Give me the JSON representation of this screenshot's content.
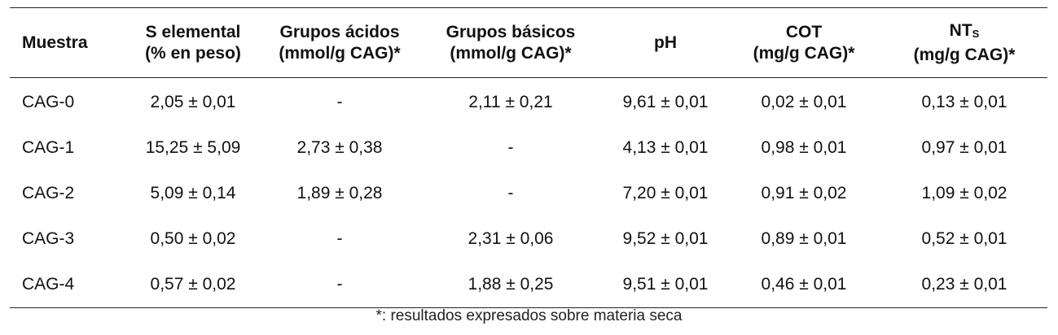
{
  "table": {
    "headers": [
      {
        "line1": "Muestra",
        "line2": ""
      },
      {
        "line1": "S elemental",
        "line2": "(% en peso)"
      },
      {
        "line1": "Grupos ácidos",
        "line2": "(mmol/g CAG)*"
      },
      {
        "line1": "Grupos básicos",
        "line2": "(mmol/g CAG)*"
      },
      {
        "line1": "pH",
        "line2": ""
      },
      {
        "line1": "COT",
        "line2": "(mg/g CAG)*"
      },
      {
        "line1": "NT",
        "sub": "S",
        "line2": "(mg/g CAG)*"
      }
    ],
    "rows": [
      [
        "CAG-0",
        "2,05 ± 0,01",
        "-",
        "2,11 ± 0,21",
        "9,61 ± 0,01",
        "0,02 ± 0,01",
        "0,13 ± 0,01"
      ],
      [
        "CAG-1",
        "15,25 ± 5,09",
        "2,73 ± 0,38",
        "-",
        "4,13 ± 0,01",
        "0,98 ± 0,01",
        "0,97 ± 0,01"
      ],
      [
        "CAG-2",
        "5,09 ± 0,14",
        "1,89 ± 0,28",
        "-",
        "7,20 ± 0,01",
        "0,91 ± 0,02",
        "1,09 ± 0,02"
      ],
      [
        "CAG-3",
        "0,50 ± 0,02",
        "-",
        "2,31 ± 0,06",
        "9,52 ± 0,01",
        "0,89 ± 0,01",
        "0,52 ± 0,01"
      ],
      [
        "CAG-4",
        "0,57 ± 0,02",
        "-",
        "1,88 ± 0,25",
        "9,51 ± 0,01",
        "0,46 ± 0,01",
        "0,23 ± 0,01"
      ]
    ]
  },
  "footnote": "*: resultados expresados sobre materia seca"
}
